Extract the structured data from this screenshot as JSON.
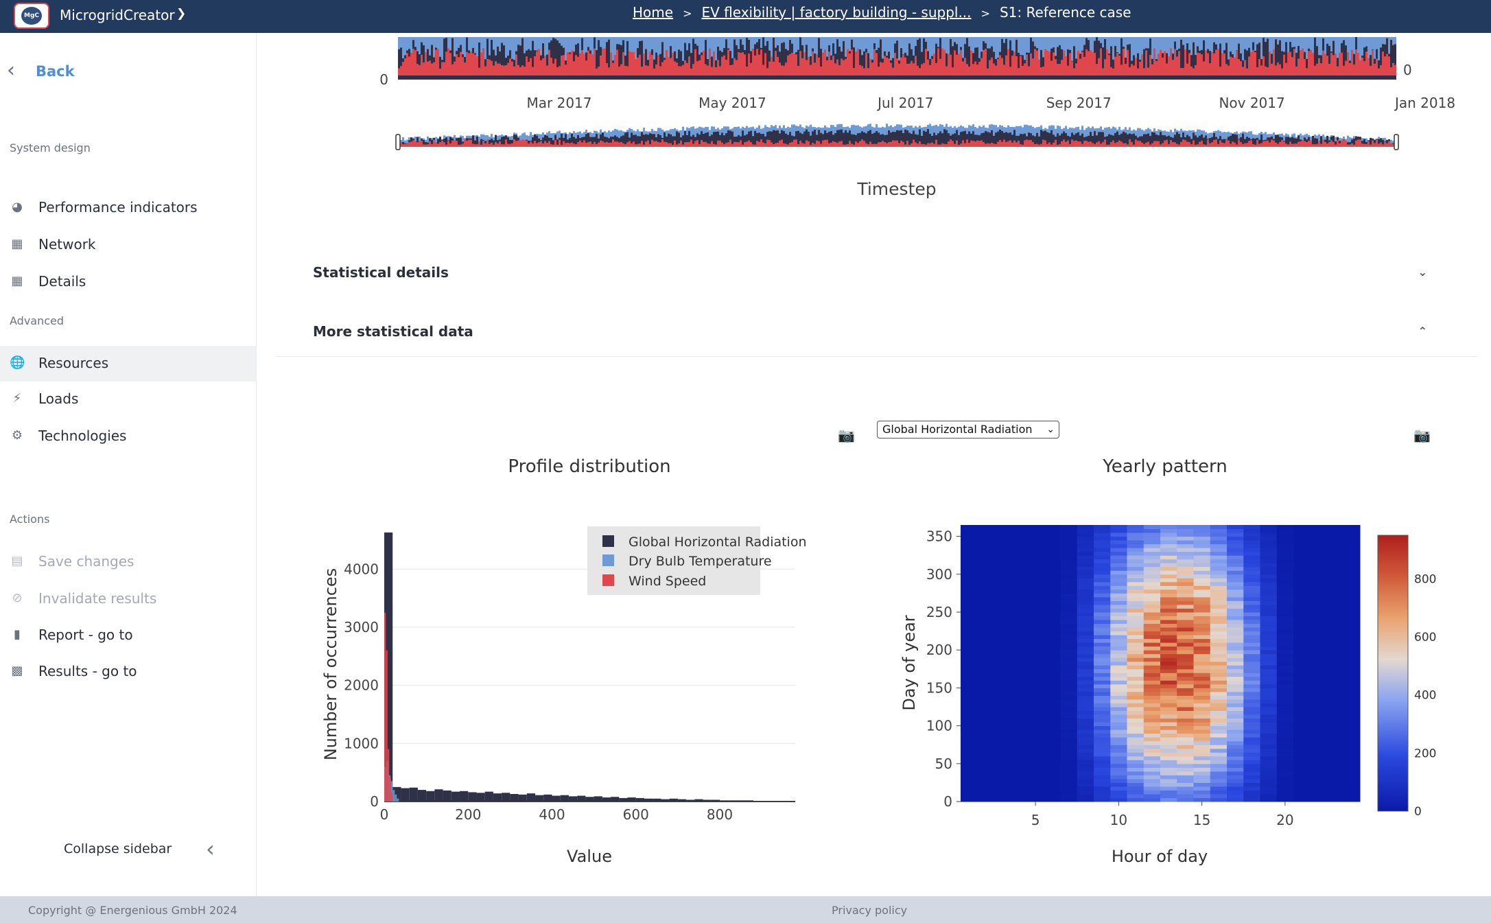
{
  "header": {
    "logo_text": "MgC",
    "app_name": "MicrogridCreator",
    "breadcrumbs": [
      {
        "label": "Home"
      },
      {
        "label": "EV flexibility | factory building - suppl..."
      },
      {
        "label": "S1: Reference case"
      }
    ],
    "separator": ">"
  },
  "sidebar": {
    "back_label": "Back",
    "sections": [
      {
        "title": "System design",
        "items": [
          {
            "label": "Performance indicators",
            "icon": "pie-chart-icon"
          },
          {
            "label": "Network",
            "icon": "network-icon"
          },
          {
            "label": "Details",
            "icon": "table-icon"
          }
        ]
      },
      {
        "title": "Advanced",
        "items": [
          {
            "label": "Resources",
            "icon": "globe-icon",
            "active": true
          },
          {
            "label": "Loads",
            "icon": "bolt-icon"
          },
          {
            "label": "Technologies",
            "icon": "gears-icon"
          }
        ]
      },
      {
        "title": "Actions",
        "items": [
          {
            "label": "Save changes",
            "icon": "save-icon",
            "disabled": true
          },
          {
            "label": "Invalidate results",
            "icon": "ban-icon",
            "disabled": true
          },
          {
            "label": "Report - go to",
            "icon": "file-icon"
          },
          {
            "label": "Results - go to",
            "icon": "bar-chart-icon"
          }
        ]
      }
    ],
    "collapse_label": "Collapse sidebar"
  },
  "timeseries": {
    "x_ticks": [
      "Mar 2017",
      "May 2017",
      "Jul 2017",
      "Sep 2017",
      "Nov 2017",
      "Jan 2018"
    ],
    "y_zero_left": "0",
    "y_zero_right": "0",
    "xlabel": "Timestep"
  },
  "accordions": [
    {
      "title": "Statistical details",
      "expanded": false
    },
    {
      "title": "More statistical data",
      "expanded": true
    }
  ],
  "selector": {
    "value": "Global Horizontal Radiation"
  },
  "colors": {
    "ghr": "#2e3147",
    "temp": "#6e9ad6",
    "wind": "#e0474c",
    "header_bg": "#223a5e",
    "accent": "#4f8fd6"
  },
  "chart_data": [
    {
      "type": "bar",
      "title": "Profile distribution",
      "xlabel": "Value",
      "ylabel": "Number of occurrences",
      "x_ticks": [
        "0",
        "200",
        "400",
        "600",
        "800"
      ],
      "y_ticks": [
        "0",
        "1000",
        "2000",
        "3000",
        "4000"
      ],
      "xlim": [
        0,
        980
      ],
      "ylim": [
        0,
        4700
      ],
      "legend": "top-right",
      "series": [
        {
          "name": "Global Horizontal Radiation",
          "bin_width": 20,
          "bins": [
            0,
            20,
            40,
            60,
            80,
            100,
            120,
            140,
            160,
            180,
            200,
            220,
            240,
            260,
            280,
            300,
            320,
            340,
            360,
            380,
            400,
            420,
            440,
            460,
            480,
            500,
            520,
            540,
            560,
            580,
            600,
            620,
            640,
            660,
            680,
            700,
            720,
            740,
            760,
            780,
            800,
            820,
            840,
            860,
            880,
            900,
            920,
            940,
            960
          ],
          "values": [
            4630,
            250,
            230,
            240,
            200,
            180,
            210,
            190,
            170,
            180,
            160,
            150,
            170,
            140,
            150,
            130,
            120,
            140,
            110,
            120,
            100,
            110,
            90,
            100,
            80,
            90,
            70,
            80,
            60,
            70,
            60,
            50,
            50,
            40,
            50,
            40,
            30,
            40,
            30,
            30,
            20,
            20,
            20,
            20,
            10,
            10,
            10,
            10,
            10
          ]
        },
        {
          "name": "Dry Bulb Temperature",
          "bin_width": 5,
          "bins": [
            0,
            5,
            10,
            15,
            20,
            25,
            30
          ],
          "values": [
            600,
            700,
            450,
            350,
            200,
            120,
            50
          ]
        },
        {
          "name": "Wind Speed",
          "bin_width": 4,
          "bins": [
            0,
            4,
            8,
            12,
            16
          ],
          "values": [
            3250,
            2600,
            900,
            400,
            150
          ]
        }
      ]
    },
    {
      "type": "heatmap",
      "title": "Yearly pattern",
      "xlabel": "Hour of day",
      "ylabel": "Day of year",
      "x_ticks": [
        "5",
        "10",
        "15",
        "20"
      ],
      "y_ticks": [
        "0",
        "50",
        "100",
        "150",
        "200",
        "250",
        "300",
        "350"
      ],
      "xlim": [
        0.5,
        24.5
      ],
      "ylim": [
        0,
        365
      ],
      "colorbar_ticks": [
        "0",
        "200",
        "400",
        "600",
        "800"
      ],
      "zmax": 950,
      "sunrise_hour": 7,
      "sunset_hour": 19,
      "peak_value": 900
    }
  ]
}
